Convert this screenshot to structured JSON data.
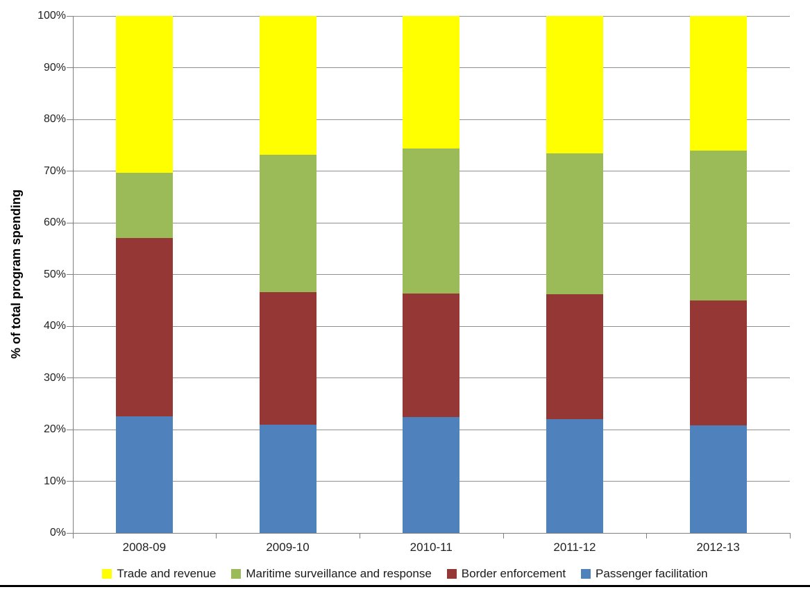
{
  "chart_data": {
    "type": "bar",
    "stacked": true,
    "percent_stacked": true,
    "title": "",
    "xlabel": "",
    "ylabel": "% of total program spending",
    "ylim": [
      0,
      100
    ],
    "ytick_step": 10,
    "yticks": [
      "0%",
      "10%",
      "20%",
      "30%",
      "40%",
      "50%",
      "60%",
      "70%",
      "80%",
      "90%",
      "100%"
    ],
    "grid": true,
    "legend_position": "bottom",
    "categories": [
      "2008-09",
      "2009-10",
      "2010-11",
      "2011-12",
      "2012-13"
    ],
    "series": [
      {
        "name": "Passenger facilitation",
        "color": "#4F81BD",
        "values": [
          22.5,
          21.0,
          22.4,
          22.0,
          20.8
        ]
      },
      {
        "name": "Border enforcement",
        "color": "#953735",
        "values": [
          34.5,
          25.6,
          23.9,
          24.2,
          24.2
        ]
      },
      {
        "name": "Maritime surveillance and response",
        "color": "#9BBB59",
        "values": [
          12.7,
          26.6,
          28.0,
          27.2,
          29.0
        ]
      },
      {
        "name": "Trade and revenue",
        "color": "#FFFF00",
        "values": [
          30.3,
          26.8,
          25.7,
          26.6,
          26.0
        ]
      }
    ],
    "legend": [
      "Trade and revenue",
      "Maritime surveillance and response",
      "Border enforcement",
      "Passenger facilitation"
    ]
  },
  "colors": {
    "background": "#FFFFFF",
    "gridline": "#8E8E8E",
    "axis": "#7F7F7F",
    "text": "#1F1F1F",
    "bottom_rule": "#000000"
  }
}
